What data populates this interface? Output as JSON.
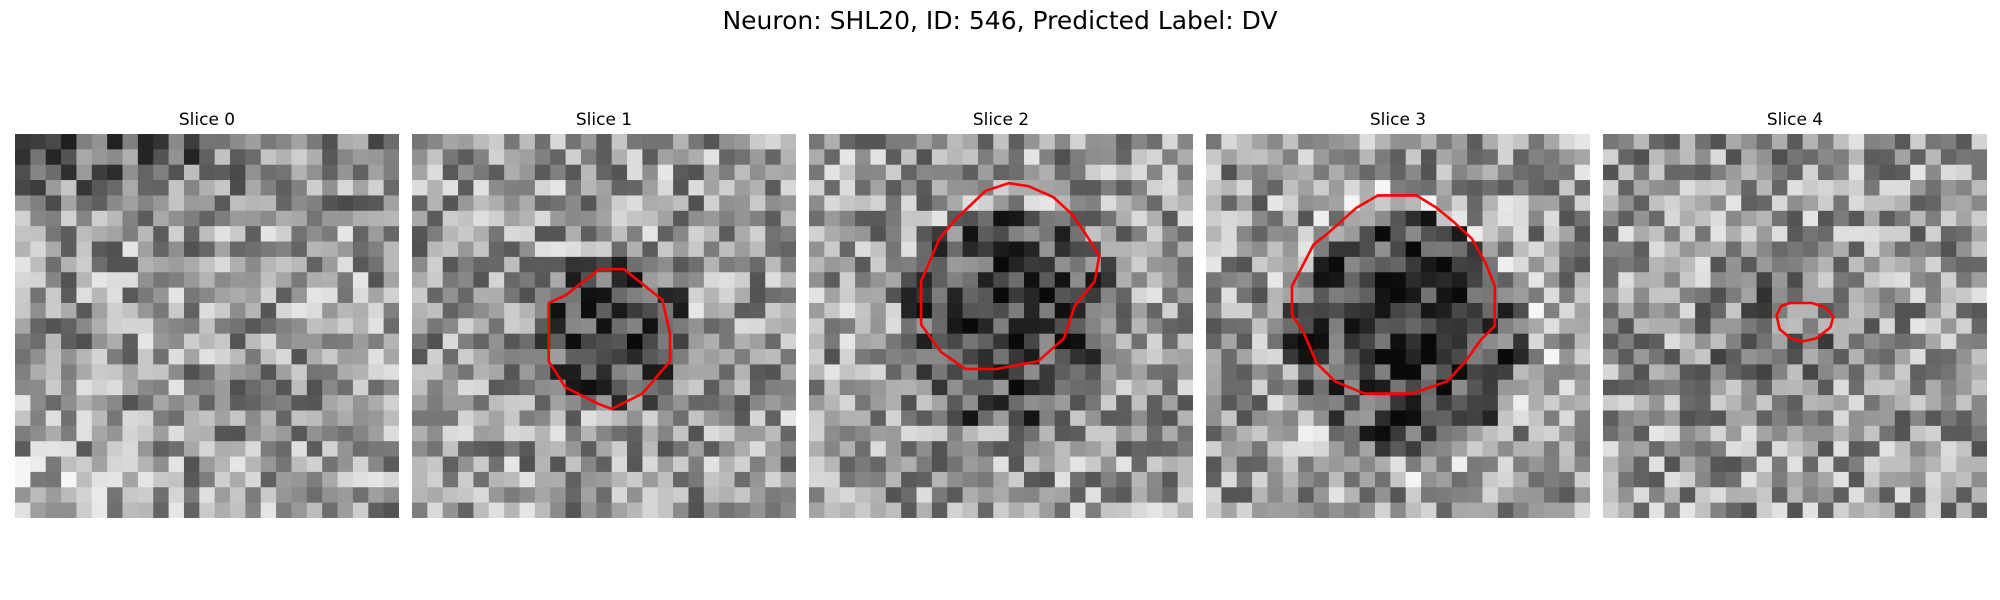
{
  "figure": {
    "title": "Neuron: SHL20, ID: 546, Predicted Label: DV"
  },
  "contour_color": "#ff0000",
  "slices": [
    {
      "label": "Slice 0",
      "seed": 11,
      "blob": null,
      "outline": null
    },
    {
      "label": "Slice 1",
      "seed": 23,
      "blob": {
        "cx": 12.5,
        "cy": 12.5,
        "r": 5.5,
        "depth": 90
      },
      "outline": "octagon_small"
    },
    {
      "label": "Slice 2",
      "seed": 37,
      "blob": {
        "cx": 12.5,
        "cy": 11.5,
        "r": 7.5,
        "depth": 100
      },
      "outline": "octagon_large"
    },
    {
      "label": "Slice 3",
      "seed": 51,
      "blob": {
        "cx": 12.5,
        "cy": 12.5,
        "r": 7.8,
        "depth": 110
      },
      "outline": "circle_large"
    },
    {
      "label": "Slice 4",
      "seed": 67,
      "blob": {
        "cx": 10.5,
        "cy": 11.5,
        "r": 5.0,
        "depth": 35
      },
      "outline": "small_blob"
    }
  ]
}
